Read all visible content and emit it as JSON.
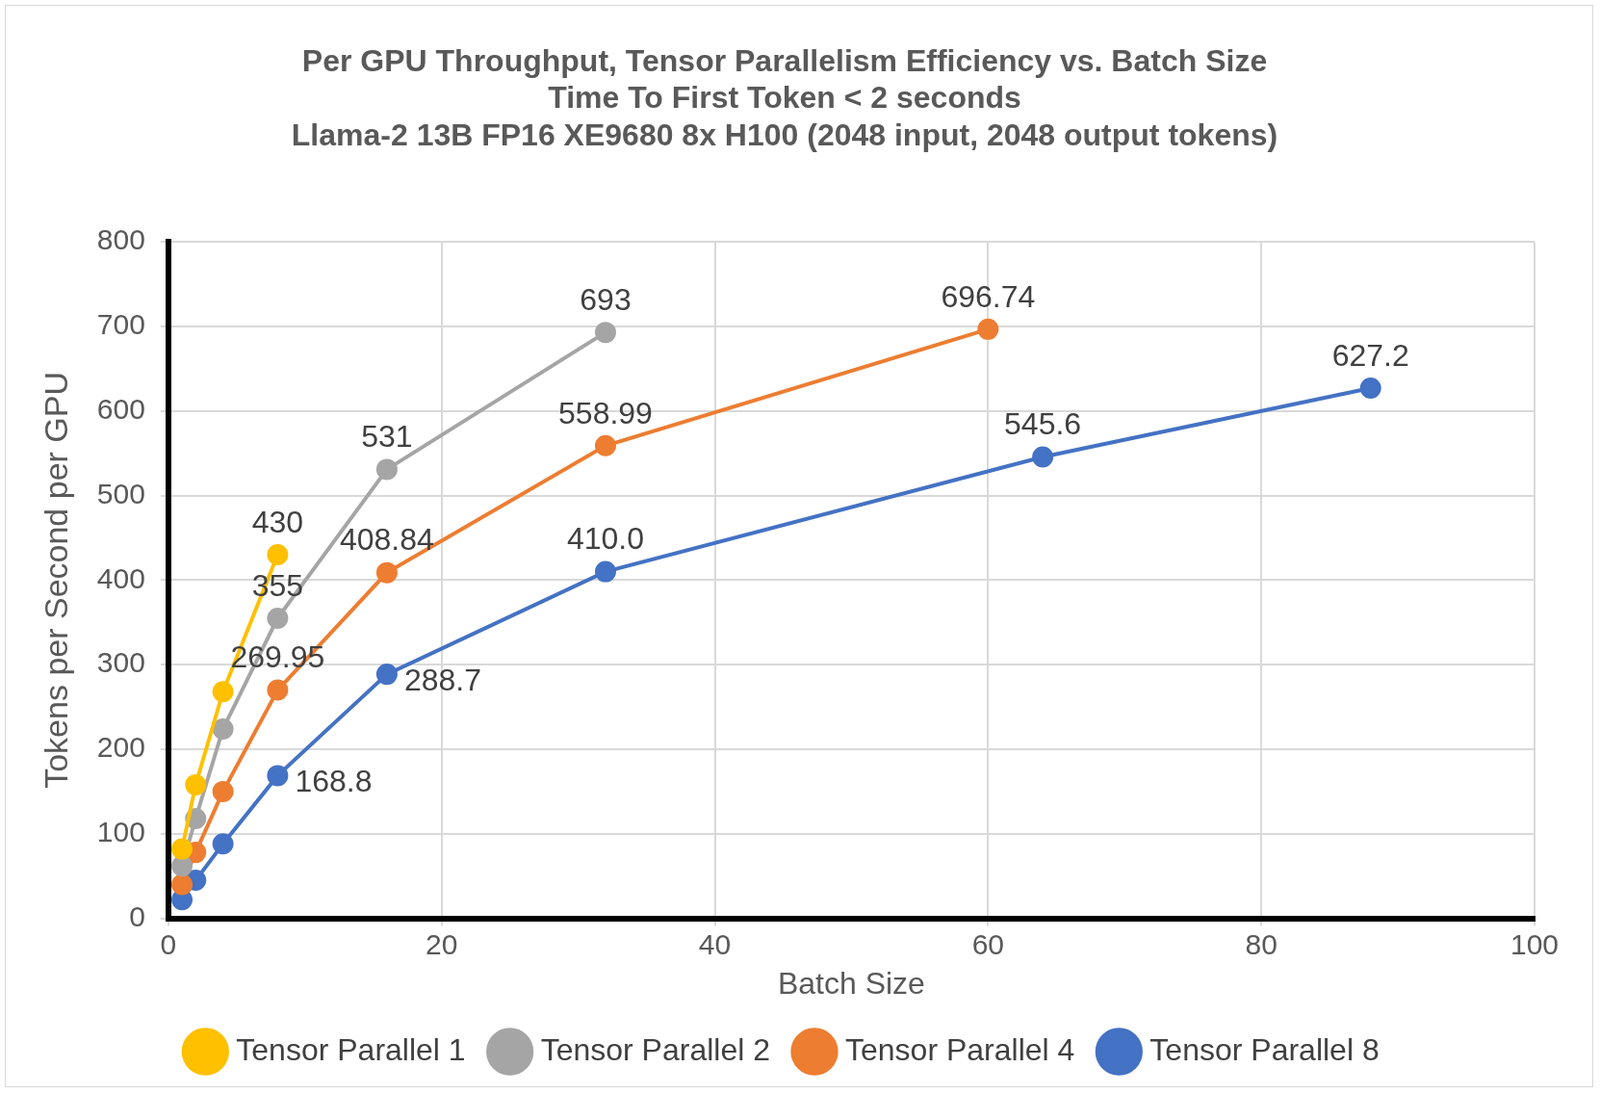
{
  "chart_data": {
    "type": "line",
    "title": [
      "Per GPU Throughput, Tensor Parallelism Efficiency vs. Batch Size",
      "Time To First Token < 2 seconds",
      "Llama-2 13B FP16 XE9680 8x H100 (2048 input, 2048 output tokens)"
    ],
    "x_label": "Batch Size",
    "y_label": "Tokens per Second per GPU",
    "xlim": [
      0,
      100
    ],
    "xticks": [
      0,
      20,
      40,
      60,
      80,
      100
    ],
    "ylim": [
      0,
      800
    ],
    "yticks": [
      0,
      100,
      200,
      300,
      400,
      500,
      600,
      700,
      800
    ],
    "grid": true,
    "legend": "bottom",
    "marker": "circle",
    "series": [
      {
        "name": "Tensor Parallel 1",
        "color": "#ffc000",
        "x": [
          1,
          2,
          4,
          8
        ],
        "values": [
          82,
          158,
          268,
          430
        ],
        "value_labels": [
          null,
          null,
          null,
          "430"
        ]
      },
      {
        "name": "Tensor Parallel 2",
        "color": "#a5a5a5",
        "x": [
          1,
          2,
          4,
          8,
          16,
          32
        ],
        "values": [
          62,
          118,
          224,
          355,
          531,
          693
        ],
        "value_labels": [
          null,
          null,
          null,
          "355",
          "531",
          "693"
        ]
      },
      {
        "name": "Tensor Parallel 4",
        "color": "#ed7d31",
        "x": [
          1,
          2,
          4,
          8,
          16,
          32,
          60
        ],
        "values": [
          40,
          78,
          150,
          269.95,
          408.84,
          558.99,
          696.74
        ],
        "value_labels": [
          null,
          null,
          null,
          "269.95",
          "408.84",
          "558.99",
          "696.74"
        ]
      },
      {
        "name": "Tensor Parallel 8",
        "color": "#4472c4",
        "x": [
          1,
          2,
          4,
          8,
          16,
          32,
          64,
          88
        ],
        "values": [
          22,
          45,
          88,
          168.8,
          288.7,
          410.0,
          545.6,
          627.2
        ],
        "value_labels": [
          null,
          null,
          null,
          "168.8",
          "288.7",
          "410.0",
          "545.6",
          "627.2"
        ]
      }
    ]
  }
}
